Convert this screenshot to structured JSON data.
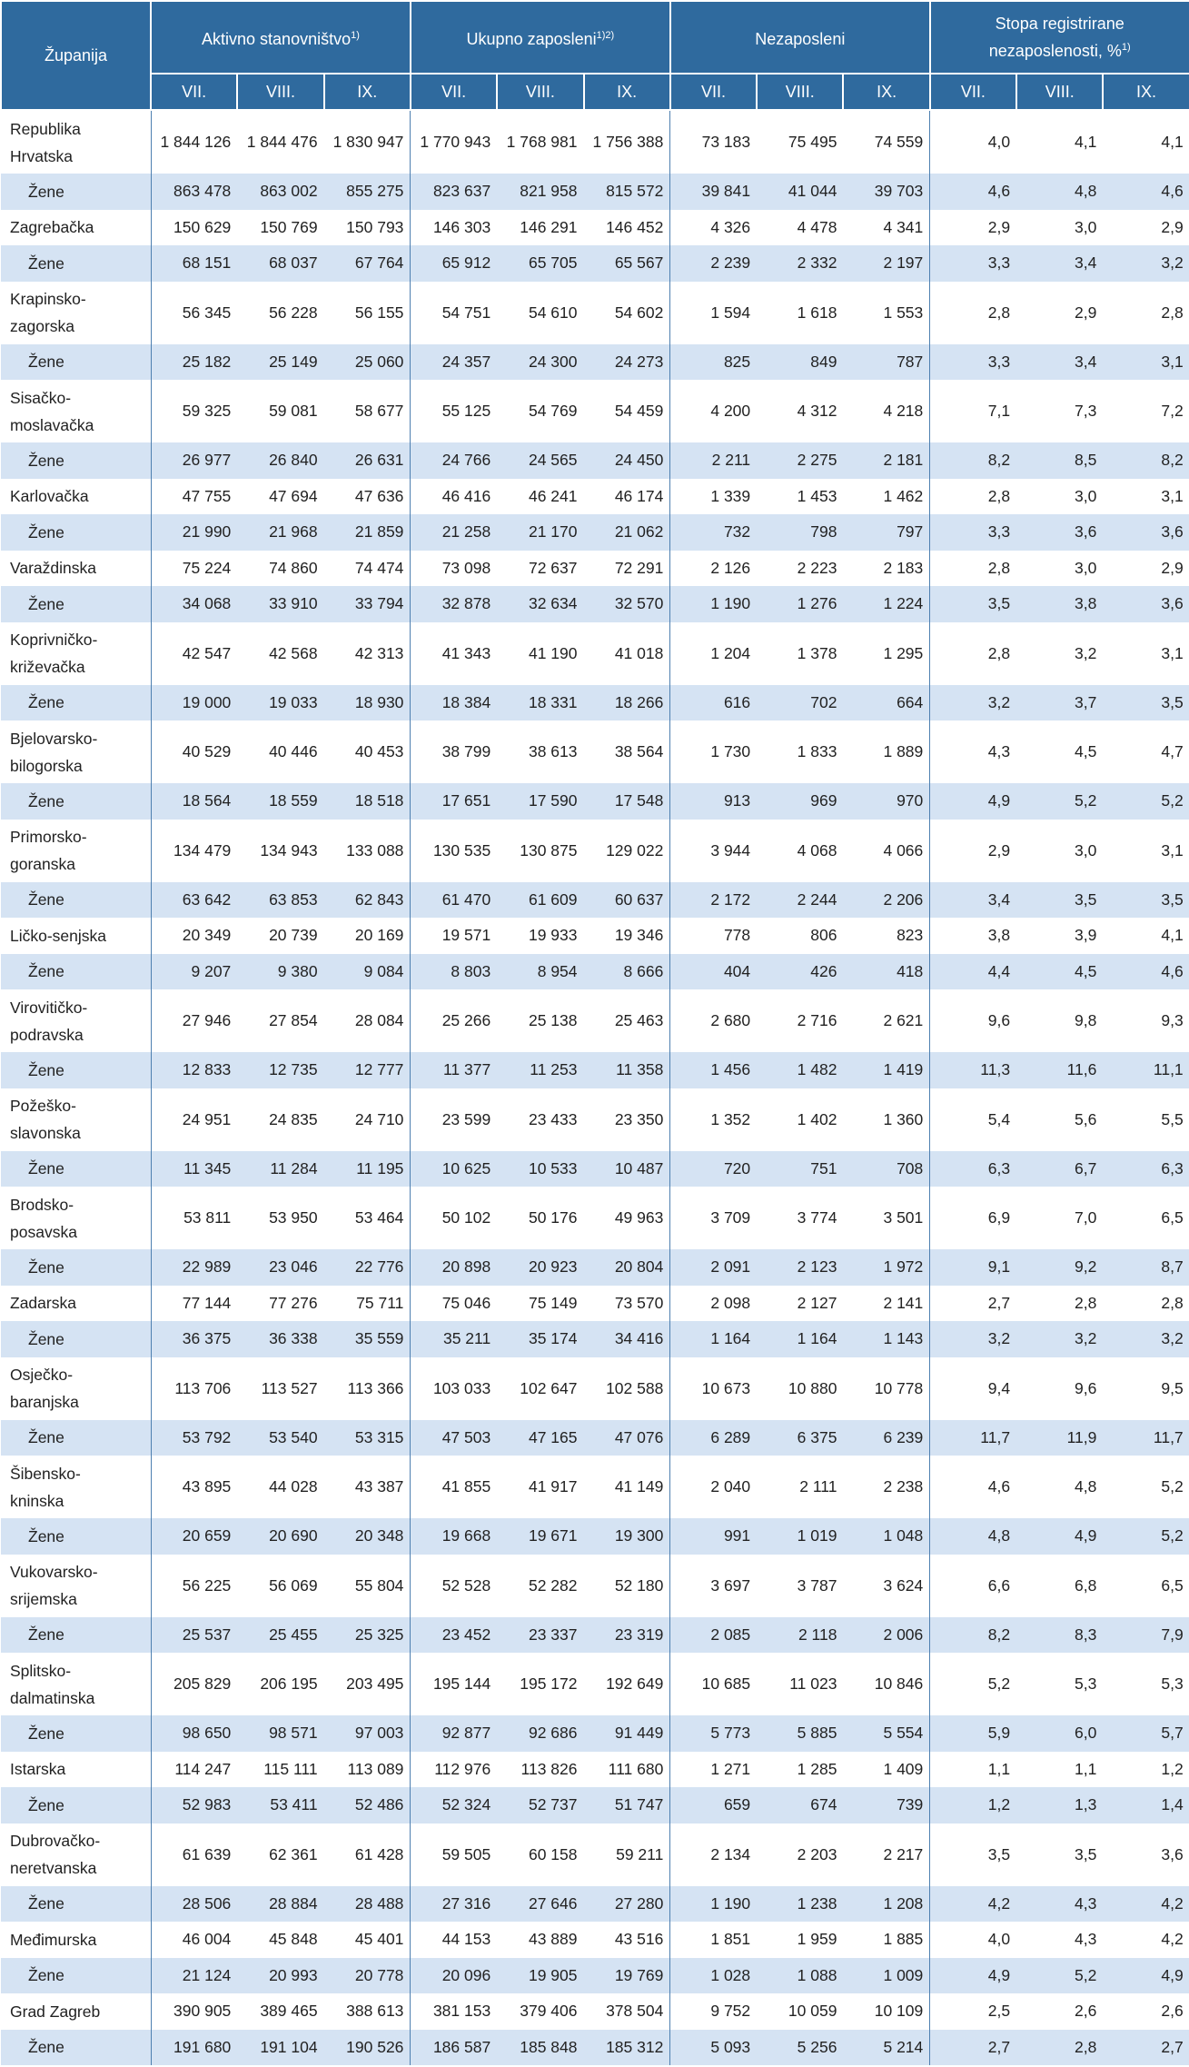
{
  "header": {
    "county": "Županija",
    "groups": [
      {
        "label": "Aktivno stanovništvo",
        "sup": "1)"
      },
      {
        "label": "Ukupno zaposleni",
        "sup": "1)2)"
      },
      {
        "label": "Nezaposleni",
        "sup": ""
      },
      {
        "label": "Stopa registrirane nezaposlenosti, %",
        "sup": "1)"
      }
    ],
    "months": [
      "VII.",
      "VIII.",
      "IX."
    ]
  },
  "rows": [
    {
      "name": "Republika\nHrvatska",
      "values": [
        "1 844 126",
        "1 844 476",
        "1 830 947",
        "1 770 943",
        "1 768 981",
        "1 756 388",
        "73 183",
        "75 495",
        "74 559",
        "4,0",
        "4,1",
        "4,1"
      ]
    },
    {
      "name": "Žene",
      "zene": true,
      "values": [
        "863 478",
        "863 002",
        "855 275",
        "823 637",
        "821 958",
        "815 572",
        "39 841",
        "41 044",
        "39 703",
        "4,6",
        "4,8",
        "4,6"
      ]
    },
    {
      "name": "Zagrebačka",
      "values": [
        "150 629",
        "150 769",
        "150 793",
        "146 303",
        "146 291",
        "146 452",
        "4 326",
        "4 478",
        "4 341",
        "2,9",
        "3,0",
        "2,9"
      ]
    },
    {
      "name": "Žene",
      "zene": true,
      "values": [
        "68 151",
        "68 037",
        "67 764",
        "65 912",
        "65 705",
        "65 567",
        "2 239",
        "2 332",
        "2 197",
        "3,3",
        "3,4",
        "3,2"
      ]
    },
    {
      "name": "Krapinsko-\nzagorska",
      "values": [
        "56 345",
        "56 228",
        "56 155",
        "54 751",
        "54 610",
        "54 602",
        "1 594",
        "1 618",
        "1 553",
        "2,8",
        "2,9",
        "2,8"
      ]
    },
    {
      "name": "Žene",
      "zene": true,
      "values": [
        "25 182",
        "25 149",
        "25 060",
        "24 357",
        "24 300",
        "24 273",
        "825",
        "849",
        "787",
        "3,3",
        "3,4",
        "3,1"
      ]
    },
    {
      "name": "Sisačko-\nmoslavačka",
      "values": [
        "59 325",
        "59 081",
        "58 677",
        "55 125",
        "54 769",
        "54 459",
        "4 200",
        "4 312",
        "4 218",
        "7,1",
        "7,3",
        "7,2"
      ]
    },
    {
      "name": "Žene",
      "zene": true,
      "values": [
        "26 977",
        "26 840",
        "26 631",
        "24 766",
        "24 565",
        "24 450",
        "2 211",
        "2 275",
        "2 181",
        "8,2",
        "8,5",
        "8,2"
      ]
    },
    {
      "name": "Karlovačka",
      "values": [
        "47 755",
        "47 694",
        "47 636",
        "46 416",
        "46 241",
        "46 174",
        "1 339",
        "1 453",
        "1 462",
        "2,8",
        "3,0",
        "3,1"
      ]
    },
    {
      "name": "Žene",
      "zene": true,
      "values": [
        "21 990",
        "21 968",
        "21 859",
        "21 258",
        "21 170",
        "21 062",
        "732",
        "798",
        "797",
        "3,3",
        "3,6",
        "3,6"
      ]
    },
    {
      "name": "Varaždinska",
      "values": [
        "75 224",
        "74 860",
        "74 474",
        "73 098",
        "72 637",
        "72 291",
        "2 126",
        "2 223",
        "2 183",
        "2,8",
        "3,0",
        "2,9"
      ]
    },
    {
      "name": "Žene",
      "zene": true,
      "values": [
        "34 068",
        "33 910",
        "33 794",
        "32 878",
        "32 634",
        "32 570",
        "1 190",
        "1 276",
        "1 224",
        "3,5",
        "3,8",
        "3,6"
      ]
    },
    {
      "name": "Koprivničko-\nkriževačka",
      "values": [
        "42 547",
        "42 568",
        "42 313",
        "41 343",
        "41 190",
        "41 018",
        "1 204",
        "1 378",
        "1 295",
        "2,8",
        "3,2",
        "3,1"
      ]
    },
    {
      "name": "Žene",
      "zene": true,
      "values": [
        "19 000",
        "19 033",
        "18 930",
        "18 384",
        "18 331",
        "18 266",
        "616",
        "702",
        "664",
        "3,2",
        "3,7",
        "3,5"
      ]
    },
    {
      "name": "Bjelovarsko-\nbilogorska",
      "values": [
        "40 529",
        "40 446",
        "40 453",
        "38 799",
        "38 613",
        "38 564",
        "1 730",
        "1 833",
        "1 889",
        "4,3",
        "4,5",
        "4,7"
      ]
    },
    {
      "name": "Žene",
      "zene": true,
      "values": [
        "18 564",
        "18 559",
        "18 518",
        "17 651",
        "17 590",
        "17 548",
        "913",
        "969",
        "970",
        "4,9",
        "5,2",
        "5,2"
      ]
    },
    {
      "name": "Primorsko-\ngoranska",
      "values": [
        "134 479",
        "134 943",
        "133 088",
        "130 535",
        "130 875",
        "129 022",
        "3 944",
        "4 068",
        "4 066",
        "2,9",
        "3,0",
        "3,1"
      ]
    },
    {
      "name": "Žene",
      "zene": true,
      "values": [
        "63 642",
        "63 853",
        "62 843",
        "61 470",
        "61 609",
        "60 637",
        "2 172",
        "2 244",
        "2 206",
        "3,4",
        "3,5",
        "3,5"
      ]
    },
    {
      "name": "Ličko-senjska",
      "values": [
        "20 349",
        "20 739",
        "20 169",
        "19 571",
        "19 933",
        "19 346",
        "778",
        "806",
        "823",
        "3,8",
        "3,9",
        "4,1"
      ]
    },
    {
      "name": "Žene",
      "zene": true,
      "values": [
        "9 207",
        "9 380",
        "9 084",
        "8 803",
        "8 954",
        "8 666",
        "404",
        "426",
        "418",
        "4,4",
        "4,5",
        "4,6"
      ]
    },
    {
      "name": "Virovitičko-\npodravska",
      "values": [
        "27 946",
        "27 854",
        "28 084",
        "25 266",
        "25 138",
        "25 463",
        "2 680",
        "2 716",
        "2 621",
        "9,6",
        "9,8",
        "9,3"
      ]
    },
    {
      "name": "Žene",
      "zene": true,
      "values": [
        "12 833",
        "12 735",
        "12 777",
        "11 377",
        "11 253",
        "11 358",
        "1 456",
        "1 482",
        "1 419",
        "11,3",
        "11,6",
        "11,1"
      ]
    },
    {
      "name": "Požeško-\nslavonska",
      "values": [
        "24 951",
        "24 835",
        "24 710",
        "23 599",
        "23 433",
        "23 350",
        "1 352",
        "1 402",
        "1 360",
        "5,4",
        "5,6",
        "5,5"
      ]
    },
    {
      "name": "Žene",
      "zene": true,
      "values": [
        "11 345",
        "11 284",
        "11 195",
        "10 625",
        "10 533",
        "10 487",
        "720",
        "751",
        "708",
        "6,3",
        "6,7",
        "6,3"
      ]
    },
    {
      "name": "Brodsko-\nposavska",
      "values": [
        "53 811",
        "53 950",
        "53 464",
        "50 102",
        "50 176",
        "49 963",
        "3 709",
        "3 774",
        "3 501",
        "6,9",
        "7,0",
        "6,5"
      ]
    },
    {
      "name": "Žene",
      "zene": true,
      "values": [
        "22 989",
        "23 046",
        "22 776",
        "20 898",
        "20 923",
        "20 804",
        "2 091",
        "2 123",
        "1 972",
        "9,1",
        "9,2",
        "8,7"
      ]
    },
    {
      "name": "Zadarska",
      "values": [
        "77 144",
        "77 276",
        "75 711",
        "75 046",
        "75 149",
        "73 570",
        "2 098",
        "2 127",
        "2 141",
        "2,7",
        "2,8",
        "2,8"
      ]
    },
    {
      "name": "Žene",
      "zene": true,
      "values": [
        "36 375",
        "36 338",
        "35 559",
        "35 211",
        "35 174",
        "34 416",
        "1 164",
        "1 164",
        "1 143",
        "3,2",
        "3,2",
        "3,2"
      ]
    },
    {
      "name": "Osječko-\nbaranjska",
      "values": [
        "113 706",
        "113 527",
        "113 366",
        "103 033",
        "102 647",
        "102 588",
        "10 673",
        "10 880",
        "10 778",
        "9,4",
        "9,6",
        "9,5"
      ]
    },
    {
      "name": "Žene",
      "zene": true,
      "values": [
        "53 792",
        "53 540",
        "53 315",
        "47 503",
        "47 165",
        "47 076",
        "6 289",
        "6 375",
        "6 239",
        "11,7",
        "11,9",
        "11,7"
      ]
    },
    {
      "name": "Šibensko-\nkninska",
      "values": [
        "43 895",
        "44 028",
        "43 387",
        "41 855",
        "41 917",
        "41 149",
        "2 040",
        "2 111",
        "2 238",
        "4,6",
        "4,8",
        "5,2"
      ]
    },
    {
      "name": "Žene",
      "zene": true,
      "values": [
        "20 659",
        "20 690",
        "20 348",
        "19 668",
        "19 671",
        "19 300",
        "991",
        "1 019",
        "1 048",
        "4,8",
        "4,9",
        "5,2"
      ]
    },
    {
      "name": "Vukovarsko-\nsrijemska",
      "values": [
        "56 225",
        "56 069",
        "55 804",
        "52 528",
        "52 282",
        "52 180",
        "3 697",
        "3 787",
        "3 624",
        "6,6",
        "6,8",
        "6,5"
      ]
    },
    {
      "name": "Žene",
      "zene": true,
      "values": [
        "25 537",
        "25 455",
        "25 325",
        "23 452",
        "23 337",
        "23 319",
        "2 085",
        "2 118",
        "2 006",
        "8,2",
        "8,3",
        "7,9"
      ]
    },
    {
      "name": "Splitsko-\ndalmatinska",
      "values": [
        "205 829",
        "206 195",
        "203 495",
        "195 144",
        "195 172",
        "192 649",
        "10 685",
        "11 023",
        "10 846",
        "5,2",
        "5,3",
        "5,3"
      ]
    },
    {
      "name": "Žene",
      "zene": true,
      "values": [
        "98 650",
        "98 571",
        "97 003",
        "92 877",
        "92 686",
        "91 449",
        "5 773",
        "5 885",
        "5 554",
        "5,9",
        "6,0",
        "5,7"
      ]
    },
    {
      "name": "Istarska",
      "values": [
        "114 247",
        "115 111",
        "113 089",
        "112 976",
        "113 826",
        "111 680",
        "1 271",
        "1 285",
        "1 409",
        "1,1",
        "1,1",
        "1,2"
      ]
    },
    {
      "name": "Žene",
      "zene": true,
      "values": [
        "52 983",
        "53 411",
        "52 486",
        "52 324",
        "52 737",
        "51 747",
        "659",
        "674",
        "739",
        "1,2",
        "1,3",
        "1,4"
      ]
    },
    {
      "name": "Dubrovačko-\nneretvanska",
      "values": [
        "61 639",
        "62 361",
        "61 428",
        "59 505",
        "60 158",
        "59 211",
        "2 134",
        "2 203",
        "2 217",
        "3,5",
        "3,5",
        "3,6"
      ]
    },
    {
      "name": "Žene",
      "zene": true,
      "values": [
        "28 506",
        "28 884",
        "28 488",
        "27 316",
        "27 646",
        "27 280",
        "1 190",
        "1 238",
        "1 208",
        "4,2",
        "4,3",
        "4,2"
      ]
    },
    {
      "name": "Međimurska",
      "values": [
        "46 004",
        "45 848",
        "45 401",
        "44 153",
        "43 889",
        "43 516",
        "1 851",
        "1 959",
        "1 885",
        "4,0",
        "4,3",
        "4,2"
      ]
    },
    {
      "name": "Žene",
      "zene": true,
      "values": [
        "21 124",
        "20 993",
        "20 778",
        "20 096",
        "19 905",
        "19 769",
        "1 028",
        "1 088",
        "1 009",
        "4,9",
        "5,2",
        "4,9"
      ]
    },
    {
      "name": "Grad Zagreb",
      "values": [
        "390 905",
        "389 465",
        "388 613",
        "381 153",
        "379 406",
        "378 504",
        "9 752",
        "10 059",
        "10 109",
        "2,5",
        "2,6",
        "2,6"
      ]
    },
    {
      "name": "Žene",
      "zene": true,
      "values": [
        "191 680",
        "191 104",
        "190 526",
        "186 587",
        "185 848",
        "185 312",
        "5 093",
        "5 256",
        "5 214",
        "2,7",
        "2,8",
        "2,7"
      ]
    }
  ]
}
